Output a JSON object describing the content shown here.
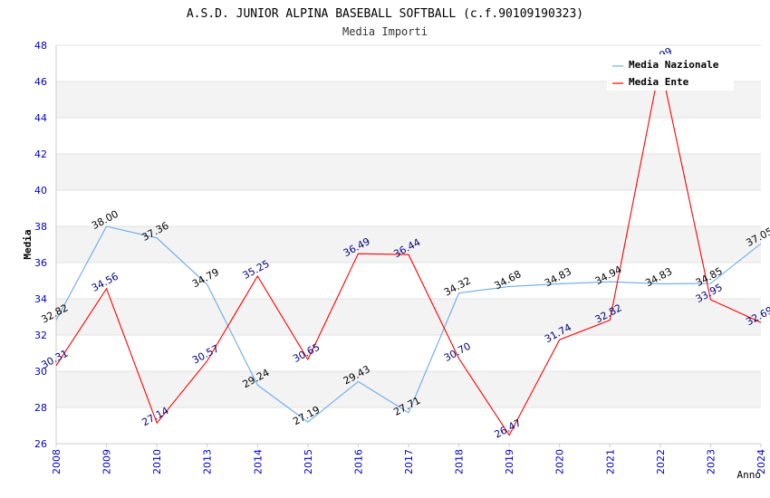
{
  "chart_data": {
    "type": "line",
    "title": "A.S.D. JUNIOR ALPINA BASEBALL SOFTBALL (c.f.90109190323)",
    "subtitle": "Media Importi",
    "xlabel": "Anno",
    "ylabel": "Media",
    "ylim": [
      26,
      48
    ],
    "yticks": [
      26,
      28,
      30,
      32,
      34,
      36,
      38,
      40,
      42,
      44,
      46,
      48
    ],
    "categories": [
      "2008",
      "2009",
      "2010",
      "2013",
      "2014",
      "2015",
      "2016",
      "2017",
      "2018",
      "2019",
      "2020",
      "2021",
      "2022",
      "2023",
      "2024"
    ],
    "series": [
      {
        "name": "Media Nazionale",
        "color": "#6aa9e8",
        "label_color": "#000000",
        "values": [
          32.82,
          38.0,
          37.36,
          34.79,
          29.24,
          27.19,
          29.43,
          27.71,
          34.32,
          34.68,
          34.83,
          34.94,
          34.83,
          34.85,
          37.05
        ],
        "labels": [
          "32.82",
          "38.00",
          "37.36",
          "34.79",
          "29.24",
          "27.19",
          "29.43",
          "27.71",
          "34.32",
          "34.68",
          "34.83",
          "34.94",
          "34.83",
          "34.85",
          "37.05"
        ]
      },
      {
        "name": "Media Ente",
        "color": "#ff0000",
        "label_color": "#000080",
        "values": [
          30.31,
          34.56,
          27.14,
          30.57,
          35.25,
          30.65,
          36.49,
          36.44,
          30.7,
          26.47,
          31.74,
          32.82,
          46.99,
          33.95,
          32.69
        ],
        "labels": [
          "30.31",
          "34.56",
          "27.14",
          "30.57",
          "35.25",
          "30.65",
          "36.49",
          "36.44",
          "30.70",
          "26.47",
          "31.74",
          "32.82",
          "46.99",
          "33.95",
          "32.69"
        ]
      }
    ],
    "grid": true,
    "legend": "top-right"
  }
}
